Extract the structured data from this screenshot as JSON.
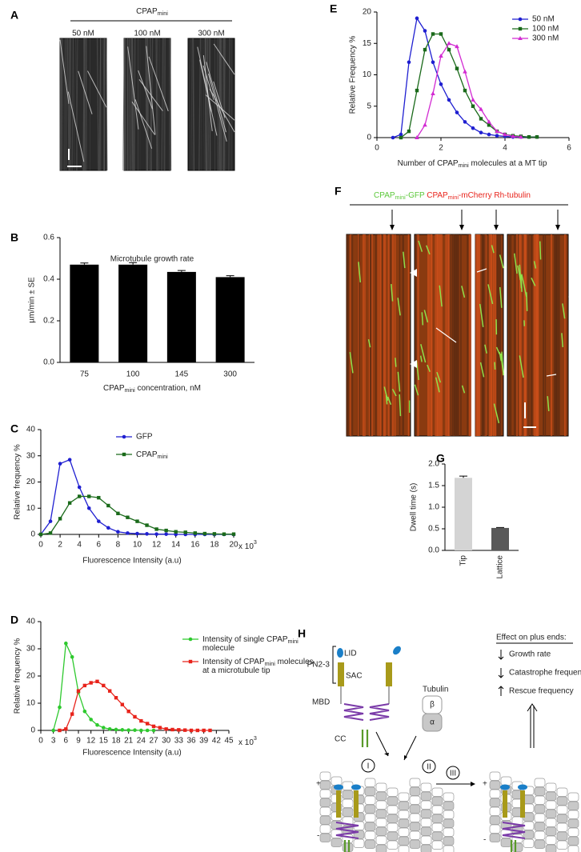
{
  "panel_a": {
    "letter": "A",
    "header": [
      "CPAP",
      {
        "sub": "mini"
      }
    ],
    "labels": [
      "50 nM",
      "100 nM",
      "300 nM"
    ]
  },
  "panel_f": {
    "letter": "F",
    "title_green": [
      "CPAP",
      {
        "sub": "mini"
      },
      "-GFP"
    ],
    "title_red": [
      " CPAP",
      {
        "sub": "mini"
      },
      "-mCherry Rh-tubulin"
    ]
  },
  "panel_h": {
    "letter": "H",
    "lid": "LID",
    "pn": "PN2-3",
    "sac": "SAC",
    "mbd": "MBD",
    "cc": "CC",
    "tubulin": "Tubulin",
    "beta": "β",
    "alpha": "α",
    "steps": [
      "I",
      "II",
      "III"
    ],
    "plus": "+",
    "minus": "-",
    "plus2": "+",
    "minus2": "-",
    "effect_title": "Effect on plus ends:",
    "effects": [
      "Growth rate",
      "Catastrophe frequency",
      "Rescue frequency"
    ]
  },
  "chart_data": [
    {
      "panel": "B",
      "type": "bar",
      "title": "Microtubule growth rate",
      "ylabel": "µm/min ± SE",
      "xlabel": [
        "CPAP",
        {
          "sub": "mini"
        },
        " concentration, nM"
      ],
      "categories": [
        "75",
        "100",
        "145",
        "300"
      ],
      "values": [
        0.47,
        0.47,
        0.435,
        0.41
      ],
      "errors": [
        0.008,
        0.01,
        0.007,
        0.007
      ],
      "color": "#000000",
      "ylim": [
        0,
        0.6
      ],
      "yticks": [
        {
          "value": 0,
          "label": "0.0"
        },
        0.2,
        0.4,
        0.6
      ]
    },
    {
      "panel": "C",
      "type": "line",
      "ylabel": "Relative frequency %",
      "xlabel": "Fluorescence Intensity (a.u)",
      "xunit": [
        "x 10",
        {
          "sup": "3"
        }
      ],
      "x": [
        0,
        1,
        2,
        3,
        4,
        5,
        6,
        7,
        8,
        9,
        10,
        11,
        12,
        13,
        14,
        15,
        16,
        17,
        18,
        19,
        20
      ],
      "series": [
        {
          "name": "GFP",
          "color": "#1f1fd1",
          "marker": "circle",
          "values": [
            0,
            5,
            27,
            28.5,
            18,
            10,
            5,
            2.5,
            1,
            0.5,
            0.3,
            0.2,
            0.1,
            0.1,
            0,
            0,
            0,
            0,
            0,
            0,
            0
          ]
        },
        {
          "name": [
            "CPAP",
            {
              "sub": "mini"
            }
          ],
          "color": "#1a6a1a",
          "marker": "square",
          "values": [
            0,
            0.5,
            6,
            12,
            14.5,
            14.5,
            14,
            11,
            8,
            6.5,
            5,
            3.5,
            2,
            1.5,
            1,
            0.8,
            0.5,
            0.3,
            0.2,
            0.1,
            0.1
          ]
        }
      ],
      "xlim": [
        0,
        20
      ],
      "xticks": [
        0,
        2,
        4,
        6,
        8,
        10,
        12,
        14,
        16,
        18,
        20
      ],
      "ylim": [
        0,
        40
      ],
      "yticks": [
        0,
        10,
        20,
        30,
        40
      ]
    },
    {
      "panel": "D",
      "type": "line",
      "ylabel": "Relative frequency %",
      "xlabel": "Fluorescence Intensity (a.u)",
      "xunit": [
        "x 10",
        {
          "sup": "3"
        }
      ],
      "x": [
        1.5,
        3,
        4.5,
        6,
        7.5,
        9,
        10.5,
        12,
        13.5,
        15,
        16.5,
        18,
        19.5,
        21,
        22.5,
        24,
        25.5,
        27,
        28.5,
        30,
        31.5,
        33,
        34.5,
        36,
        37.5,
        39,
        40.5
      ],
      "series": [
        {
          "name": [
            [
              "Intensity of single CPAP",
              {
                "sub": "mini"
              }
            ],
            [
              "molecule"
            ]
          ],
          "color": "#2ec92e",
          "marker": "circle",
          "values": [
            null,
            0,
            8.5,
            32,
            27,
            14,
            7,
            4,
            2,
            1,
            0.5,
            0.3,
            0.2,
            0.1,
            0.1,
            0,
            0,
            0,
            null,
            null,
            null,
            null,
            null,
            null,
            null,
            null,
            null
          ]
        },
        {
          "name": [
            [
              "Intensity of CPAP",
              {
                "sub": "mini"
              },
              " molecules"
            ],
            [
              "at a microtubule tip"
            ]
          ],
          "color": "#e8231b",
          "marker": "square",
          "values": [
            null,
            null,
            0,
            0.5,
            6,
            14.5,
            16.5,
            17.5,
            18,
            16.5,
            14.5,
            12,
            9.5,
            7,
            5,
            3.5,
            2.5,
            1.5,
            1,
            0.5,
            0.3,
            0.2,
            0.1,
            0,
            0,
            0,
            0
          ]
        }
      ],
      "xlim": [
        0,
        45
      ],
      "xticks": [
        0,
        3,
        6,
        9,
        12,
        15,
        18,
        21,
        24,
        27,
        30,
        33,
        36,
        39,
        42,
        45
      ],
      "ylim": [
        0,
        40
      ],
      "yticks": [
        0,
        10,
        20,
        30,
        40
      ]
    },
    {
      "panel": "E",
      "type": "line",
      "ylabel": "Relative Frequency %",
      "xlabel": [
        "Number of CPAP",
        {
          "sub": "mini"
        },
        " molecules at a MT tip"
      ],
      "x": [
        0.5,
        0.75,
        1,
        1.25,
        1.5,
        1.75,
        2,
        2.25,
        2.5,
        2.75,
        3,
        3.25,
        3.5,
        3.75,
        4,
        4.25,
        4.5,
        4.75,
        5
      ],
      "series": [
        {
          "name": "50 nM",
          "color": "#1f1fd1",
          "marker": "circle",
          "values": [
            0,
            0.5,
            12,
            19,
            17,
            12,
            8.5,
            6,
            4,
            2.5,
            1.5,
            0.8,
            0.5,
            0.3,
            0.2,
            0.1,
            0.1,
            0.1,
            0.1
          ]
        },
        {
          "name": "100 nM",
          "color": "#1a6a1a",
          "marker": "square",
          "values": [
            null,
            0,
            1,
            7.5,
            14,
            16.5,
            16.5,
            14,
            11,
            7.5,
            5,
            3,
            2,
            1,
            0.5,
            0.3,
            0.2,
            0.1,
            0.1
          ]
        },
        {
          "name": "300 nM",
          "color": "#d22bd2",
          "marker": "triangle",
          "values": [
            null,
            null,
            null,
            0,
            2,
            7,
            13,
            15,
            14.5,
            10.5,
            6,
            4.5,
            2.5,
            1,
            0.5,
            0.2,
            0.1,
            null,
            null
          ]
        }
      ],
      "xlim": [
        0,
        6
      ],
      "xticks": [
        0,
        2,
        4,
        6
      ],
      "ylim": [
        0,
        20
      ],
      "yticks": [
        0,
        5,
        10,
        15,
        20
      ]
    },
    {
      "panel": "G",
      "type": "bar",
      "ylabel": "Dwell time (s)",
      "categories": [
        "Tip",
        "Lattice"
      ],
      "values": [
        1.68,
        0.52
      ],
      "errors": [
        0.04,
        0.01
      ],
      "colors": [
        "#d4d4d4",
        "#595959"
      ],
      "ylim": [
        0,
        2
      ],
      "yticks": [
        {
          "value": 0,
          "label": "0.0"
        },
        0.5,
        {
          "value": 1,
          "label": "1.0"
        },
        1.5,
        {
          "value": 2,
          "label": "2.0"
        }
      ]
    }
  ]
}
